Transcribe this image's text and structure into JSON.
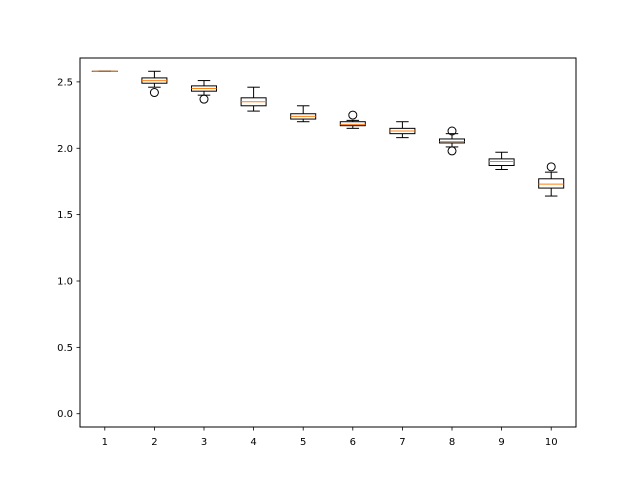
{
  "chart_data": {
    "type": "box",
    "categories": [
      "1",
      "2",
      "3",
      "4",
      "5",
      "6",
      "7",
      "8",
      "9",
      "10"
    ],
    "ylim": [
      -0.1,
      2.68
    ],
    "yticks": [
      "0.0",
      "0.5",
      "1.0",
      "1.5",
      "2.0",
      "2.5"
    ],
    "grid": false,
    "colors": {
      "box": "#000000",
      "median": "#ff7f0e",
      "axes": "#000000"
    },
    "boxes": [
      {
        "label": "1",
        "whislo": 2.58,
        "q1": 2.58,
        "med": 2.58,
        "q3": 2.58,
        "whishi": 2.58,
        "fliers": []
      },
      {
        "label": "2",
        "whislo": 2.46,
        "q1": 2.49,
        "med": 2.51,
        "q3": 2.53,
        "whishi": 2.58,
        "fliers": [
          2.42
        ]
      },
      {
        "label": "3",
        "whislo": 2.4,
        "q1": 2.43,
        "med": 2.45,
        "q3": 2.47,
        "whishi": 2.51,
        "fliers": [
          2.37
        ]
      },
      {
        "label": "4",
        "whislo": 2.28,
        "q1": 2.32,
        "med": 2.35,
        "q3": 2.38,
        "whishi": 2.46,
        "fliers": []
      },
      {
        "label": "5",
        "whislo": 2.2,
        "q1": 2.22,
        "med": 2.24,
        "q3": 2.26,
        "whishi": 2.32,
        "fliers": []
      },
      {
        "label": "6",
        "whislo": 2.15,
        "q1": 2.17,
        "med": 2.18,
        "q3": 2.2,
        "whishi": 2.21,
        "fliers": [
          2.25
        ]
      },
      {
        "label": "7",
        "whislo": 2.08,
        "q1": 2.11,
        "med": 2.13,
        "q3": 2.15,
        "whishi": 2.2,
        "fliers": []
      },
      {
        "label": "8",
        "whislo": 2.01,
        "q1": 2.04,
        "med": 2.05,
        "q3": 2.07,
        "whishi": 2.11,
        "fliers": [
          2.13,
          1.98
        ]
      },
      {
        "label": "9",
        "whislo": 1.84,
        "q1": 1.87,
        "med": 1.9,
        "q3": 1.92,
        "whishi": 1.97,
        "fliers": []
      },
      {
        "label": "10",
        "whislo": 1.64,
        "q1": 1.7,
        "med": 1.73,
        "q3": 1.77,
        "whishi": 1.82,
        "fliers": [
          1.86
        ]
      }
    ]
  }
}
